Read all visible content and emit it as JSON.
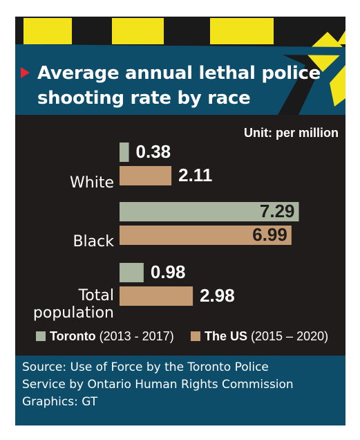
{
  "title": "Average annual lethal police shooting rate by race",
  "unit_label": "Unit: per million",
  "colors": {
    "toronto": "#a9b59f",
    "us": "#c49b72",
    "panel": "#1f1c1b",
    "header": "#0e4d6a",
    "accent": "#e8272f",
    "tape_yellow": "#f2e31b"
  },
  "chart_data": {
    "type": "bar",
    "orientation": "horizontal",
    "categories": [
      "White",
      "Black",
      "Total population"
    ],
    "series": [
      {
        "name": "Toronto (2013 - 2017)",
        "values": [
          0.38,
          7.29,
          0.98
        ]
      },
      {
        "name": "The US (2015 – 2020)",
        "values": [
          2.11,
          6.99,
          2.98
        ]
      }
    ],
    "value_labels": [
      [
        "0.38",
        "7.29",
        "0.98"
      ],
      [
        "2.11",
        "6.99",
        "2.98"
      ]
    ],
    "legend": [
      {
        "bold": "Toronto",
        "rest": " (2013 - 2017)"
      },
      {
        "bold": "The US",
        "rest": " (2015 – 2020)"
      }
    ],
    "legend_position": "bottom",
    "grid": false
  },
  "source": {
    "lines": [
      "Source: Use of Force by the Toronto Police",
      "Service by Ontario Human Rights Commission",
      "Graphics: GT"
    ]
  }
}
